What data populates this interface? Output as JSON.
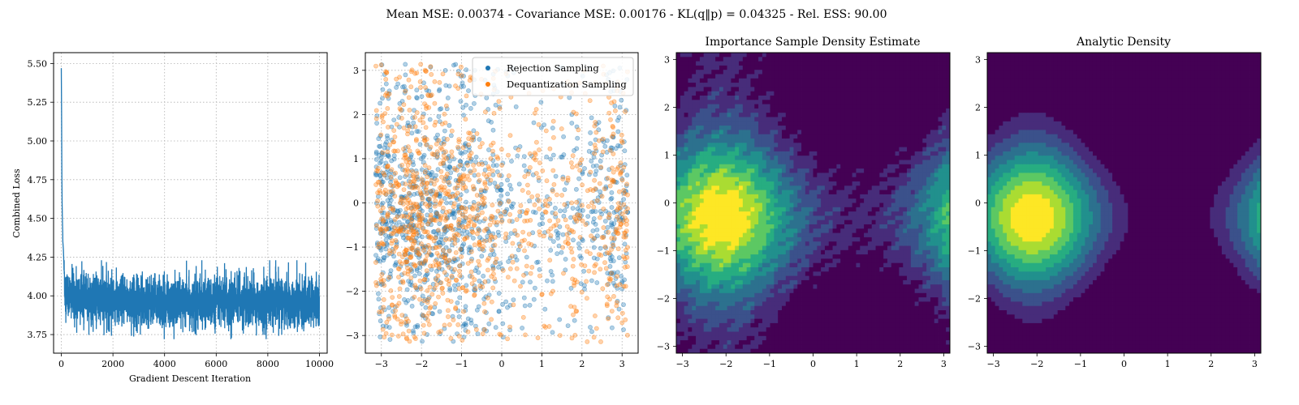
{
  "figure": {
    "suptitle": "Mean MSE: 0.00374 - Covariance MSE: 0.00176 - KL(q‖p) = 0.04325 - Rel. ESS: 90.00"
  },
  "colors": {
    "blue": "#1f77b4",
    "orange": "#ff7f0e",
    "viridis": [
      "#440154",
      "#472c7a",
      "#3b518b",
      "#2c718e",
      "#21908d",
      "#27ad81",
      "#5cc863",
      "#aadc32",
      "#fde725"
    ]
  },
  "chart_data": [
    {
      "id": "loss",
      "type": "line",
      "title": "",
      "xlabel": "Gradient Descent Iteration",
      "ylabel": "Combined Loss",
      "xlim": [
        -300,
        10300
      ],
      "ylim": [
        3.63,
        5.57
      ],
      "xticks": [
        0,
        2000,
        4000,
        6000,
        8000,
        10000
      ],
      "xtick_labels": [
        "0",
        "2000",
        "4000",
        "6000",
        "8000",
        "10000"
      ],
      "yticks": [
        3.75,
        4.0,
        4.25,
        4.5,
        4.75,
        5.0,
        5.25,
        5.5
      ],
      "ytick_labels": [
        "3.75",
        "4.00",
        "4.25",
        "4.50",
        "4.75",
        "5.00",
        "5.25",
        "5.50"
      ],
      "grid": true,
      "series": [
        {
          "color": "#1f77b4",
          "x": [
            0,
            10,
            20,
            30,
            40,
            60,
            80,
            100,
            120,
            150,
            200,
            300,
            500,
            1000,
            2000,
            3000,
            4000,
            5000,
            6000,
            7000,
            8000,
            9000,
            10000
          ],
          "y": [
            5.47,
            5.2,
            4.8,
            4.6,
            4.5,
            4.35,
            4.3,
            4.2,
            4.1,
            4.05,
            4.02,
            4.0,
            3.99,
            3.98,
            3.97,
            3.97,
            3.96,
            3.96,
            3.96,
            3.96,
            3.96,
            3.95,
            3.95
          ],
          "noise_band": [
            3.72,
            4.23
          ]
        }
      ]
    },
    {
      "id": "samples",
      "type": "scatter",
      "title": "",
      "xlim": [
        -3.4,
        3.4
      ],
      "ylim": [
        -3.4,
        3.4
      ],
      "xticks": [
        -3,
        -2,
        -1,
        0,
        1,
        2,
        3
      ],
      "xtick_labels": [
        "−3",
        "−2",
        "−1",
        "0",
        "1",
        "2",
        "3"
      ],
      "yticks": [
        -3,
        -2,
        -1,
        0,
        1,
        2,
        3
      ],
      "ytick_labels": [
        "−3",
        "−2",
        "−1",
        "0",
        "1",
        "2",
        "3"
      ],
      "grid": true,
      "legend_position": "top-right",
      "series": [
        {
          "name": "Rejection Sampling",
          "color": "#1f77b4",
          "domain": [
            -3.14159,
            3.14159
          ]
        },
        {
          "name": "Dequantization Sampling",
          "color": "#ff7f0e",
          "domain": [
            -3.14159,
            3.14159
          ]
        }
      ]
    },
    {
      "id": "is_density",
      "type": "heatmap",
      "title": "Importance Sample Density Estimate",
      "xlim": [
        -3.14159,
        3.14159
      ],
      "ylim": [
        -3.14159,
        3.14159
      ],
      "xticks": [
        -3,
        -2,
        -1,
        0,
        1,
        2,
        3
      ],
      "xtick_labels": [
        "−3",
        "−2",
        "−1",
        "0",
        "1",
        "2",
        "3"
      ],
      "yticks": [
        -3,
        -2,
        -1,
        0,
        1,
        2,
        3
      ],
      "ytick_labels": [
        "−3",
        "−2",
        "−1",
        "0",
        "1",
        "2",
        "3"
      ],
      "levels": 9,
      "density_center": [
        -2.1,
        -0.3
      ]
    },
    {
      "id": "analytic_density",
      "type": "heatmap",
      "title": "Analytic Density",
      "xlim": [
        -3.14159,
        3.14159
      ],
      "ylim": [
        -3.14159,
        3.14159
      ],
      "xticks": [
        -3,
        -2,
        -1,
        0,
        1,
        2,
        3
      ],
      "xtick_labels": [
        "−3",
        "−2",
        "−1",
        "0",
        "1",
        "2",
        "3"
      ],
      "yticks": [
        -3,
        -2,
        -1,
        0,
        1,
        2,
        3
      ],
      "ytick_labels": [
        "−3",
        "−2",
        "−1",
        "0",
        "1",
        "2",
        "3"
      ],
      "levels": 9,
      "density_center": [
        -2.1,
        -0.3
      ]
    }
  ]
}
